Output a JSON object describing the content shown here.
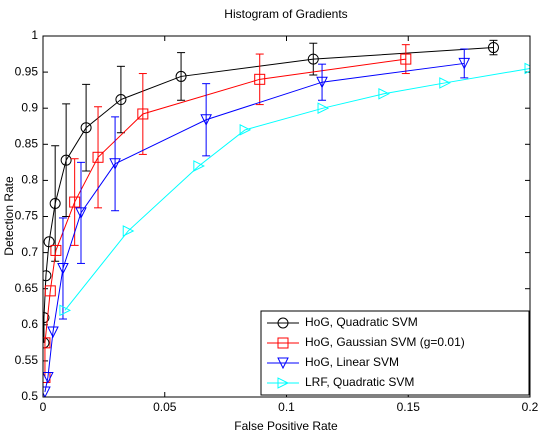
{
  "chart_data": {
    "type": "line",
    "title": "Histogram of Gradients",
    "x_label": "False Positive Rate",
    "y_label": "Detection Rate",
    "xlim": [
      0,
      0.2
    ],
    "ylim": [
      0.5,
      1
    ],
    "xticks": [
      0,
      0.05,
      0.1,
      0.15,
      0.2
    ],
    "yticks": [
      0.5,
      0.55,
      0.6,
      0.65,
      0.7,
      0.75,
      0.8,
      0.85,
      0.9,
      0.95,
      1
    ],
    "grid": false,
    "legend": "lower right",
    "series": [
      {
        "name": "HoG, Quadratic SVM",
        "color": "#000000",
        "marker": "circle",
        "x": [
          0.0004,
          0.0004,
          0.0012,
          0.0025,
          0.005,
          0.0095,
          0.0177,
          0.032,
          0.0567,
          0.111,
          0.185
        ],
        "values": [
          0.575,
          0.61,
          0.668,
          0.715,
          0.768,
          0.828,
          0.873,
          0.912,
          0.944,
          0.968,
          0.984
        ],
        "errors": [
          null,
          null,
          null,
          null,
          0.08,
          0.078,
          0.06,
          0.046,
          0.033,
          0.022,
          0.01
        ]
      },
      {
        "name": "HoG, Gaussian SVM (g=0.01)",
        "color": "#ff0000",
        "marker": "square",
        "x": [
          0.0008,
          0.0008,
          0.003,
          0.0053,
          0.013,
          0.0226,
          0.041,
          0.089,
          0.149
        ],
        "values": [
          0.527,
          0.575,
          0.647,
          0.703,
          0.77,
          0.832,
          0.892,
          0.94,
          0.968
        ],
        "errors": [
          null,
          null,
          null,
          null,
          0.06,
          0.07,
          0.056,
          0.035,
          0.02
        ]
      },
      {
        "name": "HoG, Linear SVM",
        "color": "#0000ff",
        "marker": "triangle-down",
        "x": [
          0.0008,
          0.002,
          0.0041,
          0.0082,
          0.0156,
          0.0296,
          0.067,
          0.1146,
          0.173
        ],
        "values": [
          0.507,
          0.527,
          0.59,
          0.678,
          0.755,
          0.823,
          0.884,
          0.936,
          0.962
        ],
        "errors": [
          null,
          null,
          null,
          0.07,
          0.07,
          0.065,
          0.05,
          0.025,
          0.02
        ]
      },
      {
        "name": "LRF, Quadratic SVM",
        "color": "#00ffff",
        "marker": "triangle-right",
        "x": [
          0.009,
          0.035,
          0.064,
          0.083,
          0.115,
          0.14,
          0.165,
          0.2
        ],
        "values": [
          0.62,
          0.73,
          0.82,
          0.87,
          0.9,
          0.92,
          0.935,
          0.955
        ],
        "errors": [
          null,
          null,
          null,
          null,
          null,
          null,
          null,
          null
        ]
      }
    ]
  }
}
